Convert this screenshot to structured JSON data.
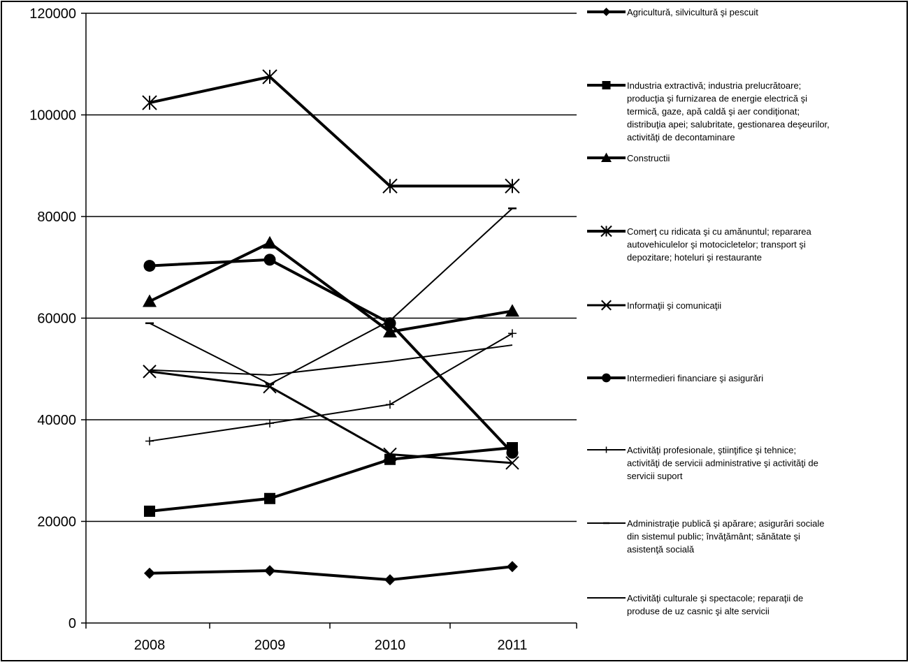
{
  "chart_data": {
    "type": "line",
    "title": "",
    "xlabel": "",
    "ylabel": "",
    "x": [
      "2008",
      "2009",
      "2010",
      "2011"
    ],
    "ylim": [
      0,
      120000
    ],
    "yticks": [
      0,
      20000,
      40000,
      60000,
      80000,
      100000,
      120000
    ],
    "ytick_labels": [
      "0",
      "20000",
      "40000",
      "60000",
      "80000",
      "100000",
      "120000"
    ],
    "grid": "horizontal",
    "legend_position": "right",
    "series": [
      {
        "name_lines": [
          "Agricultură, silvicultură şi pescuit"
        ],
        "values": [
          9800,
          10300,
          8500,
          11100
        ],
        "marker": "diamond",
        "stroke_width": 4,
        "color": "#000000"
      },
      {
        "name_lines": [
          "Industria extractivă; industria prelucrătoare;",
          "producţia şi furnizarea de energie electrică şi",
          "termică, gaze, apă caldă şi aer condiţionat;",
          "distribuţia apei; salubritate, gestionarea deşeurilor,",
          "activităţi de decontaminare"
        ],
        "values": [
          22000,
          24500,
          32200,
          34500
        ],
        "marker": "square",
        "stroke_width": 4,
        "color": "#000000"
      },
      {
        "name_lines": [
          "Constructii"
        ],
        "values": [
          63300,
          74800,
          57300,
          61400
        ],
        "marker": "triangle",
        "stroke_width": 4,
        "color": "#000000"
      },
      {
        "name_lines": [
          "Comerţ cu ridicata şi cu amănuntul; repararea",
          "autovehiculelor şi motocicletelor; transport şi",
          "depozitare; hoteluri şi restaurante"
        ],
        "values": [
          102400,
          107500,
          86000,
          86000
        ],
        "marker": "asterisk",
        "stroke_width": 4,
        "color": "#000000"
      },
      {
        "name_lines": [
          "Informaţii şi comunicaţii"
        ],
        "values": [
          49500,
          46500,
          33200,
          31500
        ],
        "marker": "x",
        "stroke_width": 3,
        "color": "#000000"
      },
      {
        "name_lines": [
          "Intermedieri financiare şi asigurări"
        ],
        "values": [
          70300,
          71500,
          59000,
          33500
        ],
        "marker": "circle",
        "stroke_width": 4,
        "color": "#000000"
      },
      {
        "name_lines": [
          "Activităţi profesionale, ştiinţifice şi tehnice;",
          "activităţi de servicii administrative şi activităţi de",
          "servicii suport"
        ],
        "values": [
          35800,
          39300,
          43000,
          57000
        ],
        "marker": "plus",
        "stroke_width": 2,
        "color": "#000000"
      },
      {
        "name_lines": [
          "Administraţie publică şi apărare; asigurări sociale",
          "din sistemul public; învăţământ; sănătate şi",
          "asistenţă socială"
        ],
        "values": [
          59000,
          47000,
          59500,
          81600
        ],
        "marker": "dash",
        "stroke_width": 2,
        "color": "#000000"
      },
      {
        "name_lines": [
          "Activităţi culturale şi spectacole; reparaţii de",
          "produse de uz casnic şi alte servicii"
        ],
        "values": [
          49800,
          48800,
          51500,
          54700
        ],
        "marker": "none",
        "stroke_width": 2,
        "color": "#000000"
      }
    ]
  }
}
